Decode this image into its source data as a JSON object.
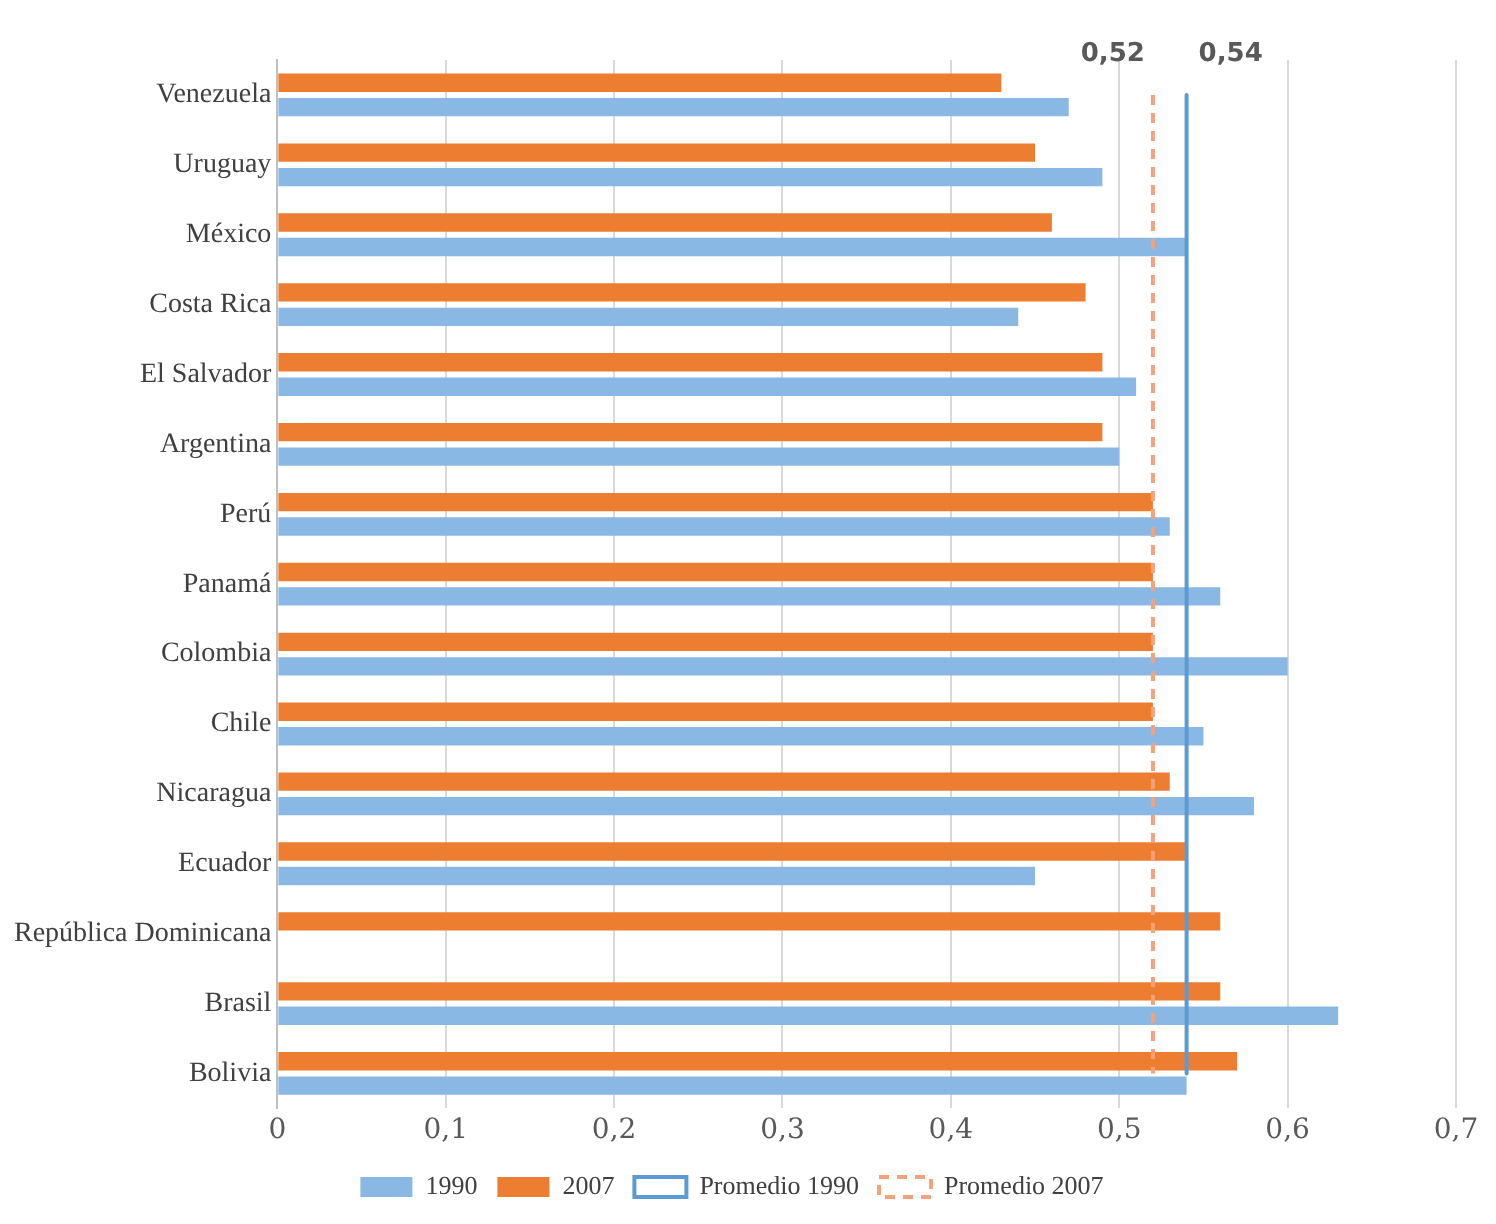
{
  "chart_data": {
    "type": "bar",
    "orientation": "horizontal",
    "categories": [
      "Venezuela",
      "Uruguay",
      "México",
      "Costa Rica",
      "El Salvador",
      "Argentina",
      "Perú",
      "Panamá",
      "Colombia",
      "Chile",
      "Nicaragua",
      "Ecuador",
      "República Dominicana",
      "Brasil",
      "Bolivia"
    ],
    "series": [
      {
        "name": "1990",
        "color": "#8ab8e4",
        "values": [
          0.47,
          0.49,
          0.54,
          0.44,
          0.51,
          0.5,
          0.53,
          0.56,
          0.6,
          0.55,
          0.58,
          0.45,
          null,
          0.63,
          0.54
        ]
      },
      {
        "name": "2007",
        "color": "#ed7d31",
        "values": [
          0.43,
          0.45,
          0.46,
          0.48,
          0.49,
          0.49,
          0.52,
          0.52,
          0.52,
          0.52,
          0.53,
          0.54,
          0.56,
          0.56,
          0.57
        ]
      },
      {
        "name": "Promedio 1990",
        "type": "line",
        "color": "#5b9bd5",
        "line_style": "solid",
        "values": [
          0.54,
          0.54,
          0.54,
          0.54,
          0.54,
          0.54,
          0.54,
          0.54,
          0.54,
          0.54,
          0.54,
          0.54,
          0.54,
          0.54,
          0.54
        ]
      },
      {
        "name": "Promedio 2007",
        "type": "line",
        "color": "#f4a27a",
        "line_style": "dashed",
        "values": [
          0.52,
          0.52,
          0.52,
          0.52,
          0.52,
          0.52,
          0.52,
          0.52,
          0.52,
          0.52,
          0.52,
          0.52,
          0.52,
          0.52,
          0.52
        ]
      }
    ],
    "xlim": [
      0,
      0.7
    ],
    "xticks": [
      0,
      {
        "value": 0.1,
        "label": "0,1"
      },
      {
        "value": 0.2,
        "label": "0,2"
      },
      {
        "value": 0.3,
        "label": "0,3"
      },
      {
        "value": 0.4,
        "label": "0,4"
      },
      {
        "value": 0.5,
        "label": "0,5"
      },
      {
        "value": 0.6,
        "label": "0,6"
      },
      {
        "value": 0.7,
        "label": "0,7"
      }
    ],
    "annotations": [
      {
        "text": "0,52",
        "x": 0.52,
        "y": "Venezuela"
      },
      {
        "text": "0,54",
        "x": 0.54,
        "y": "Venezuela"
      }
    ],
    "grid": "x",
    "legend": "bottom",
    "marker": "none"
  }
}
